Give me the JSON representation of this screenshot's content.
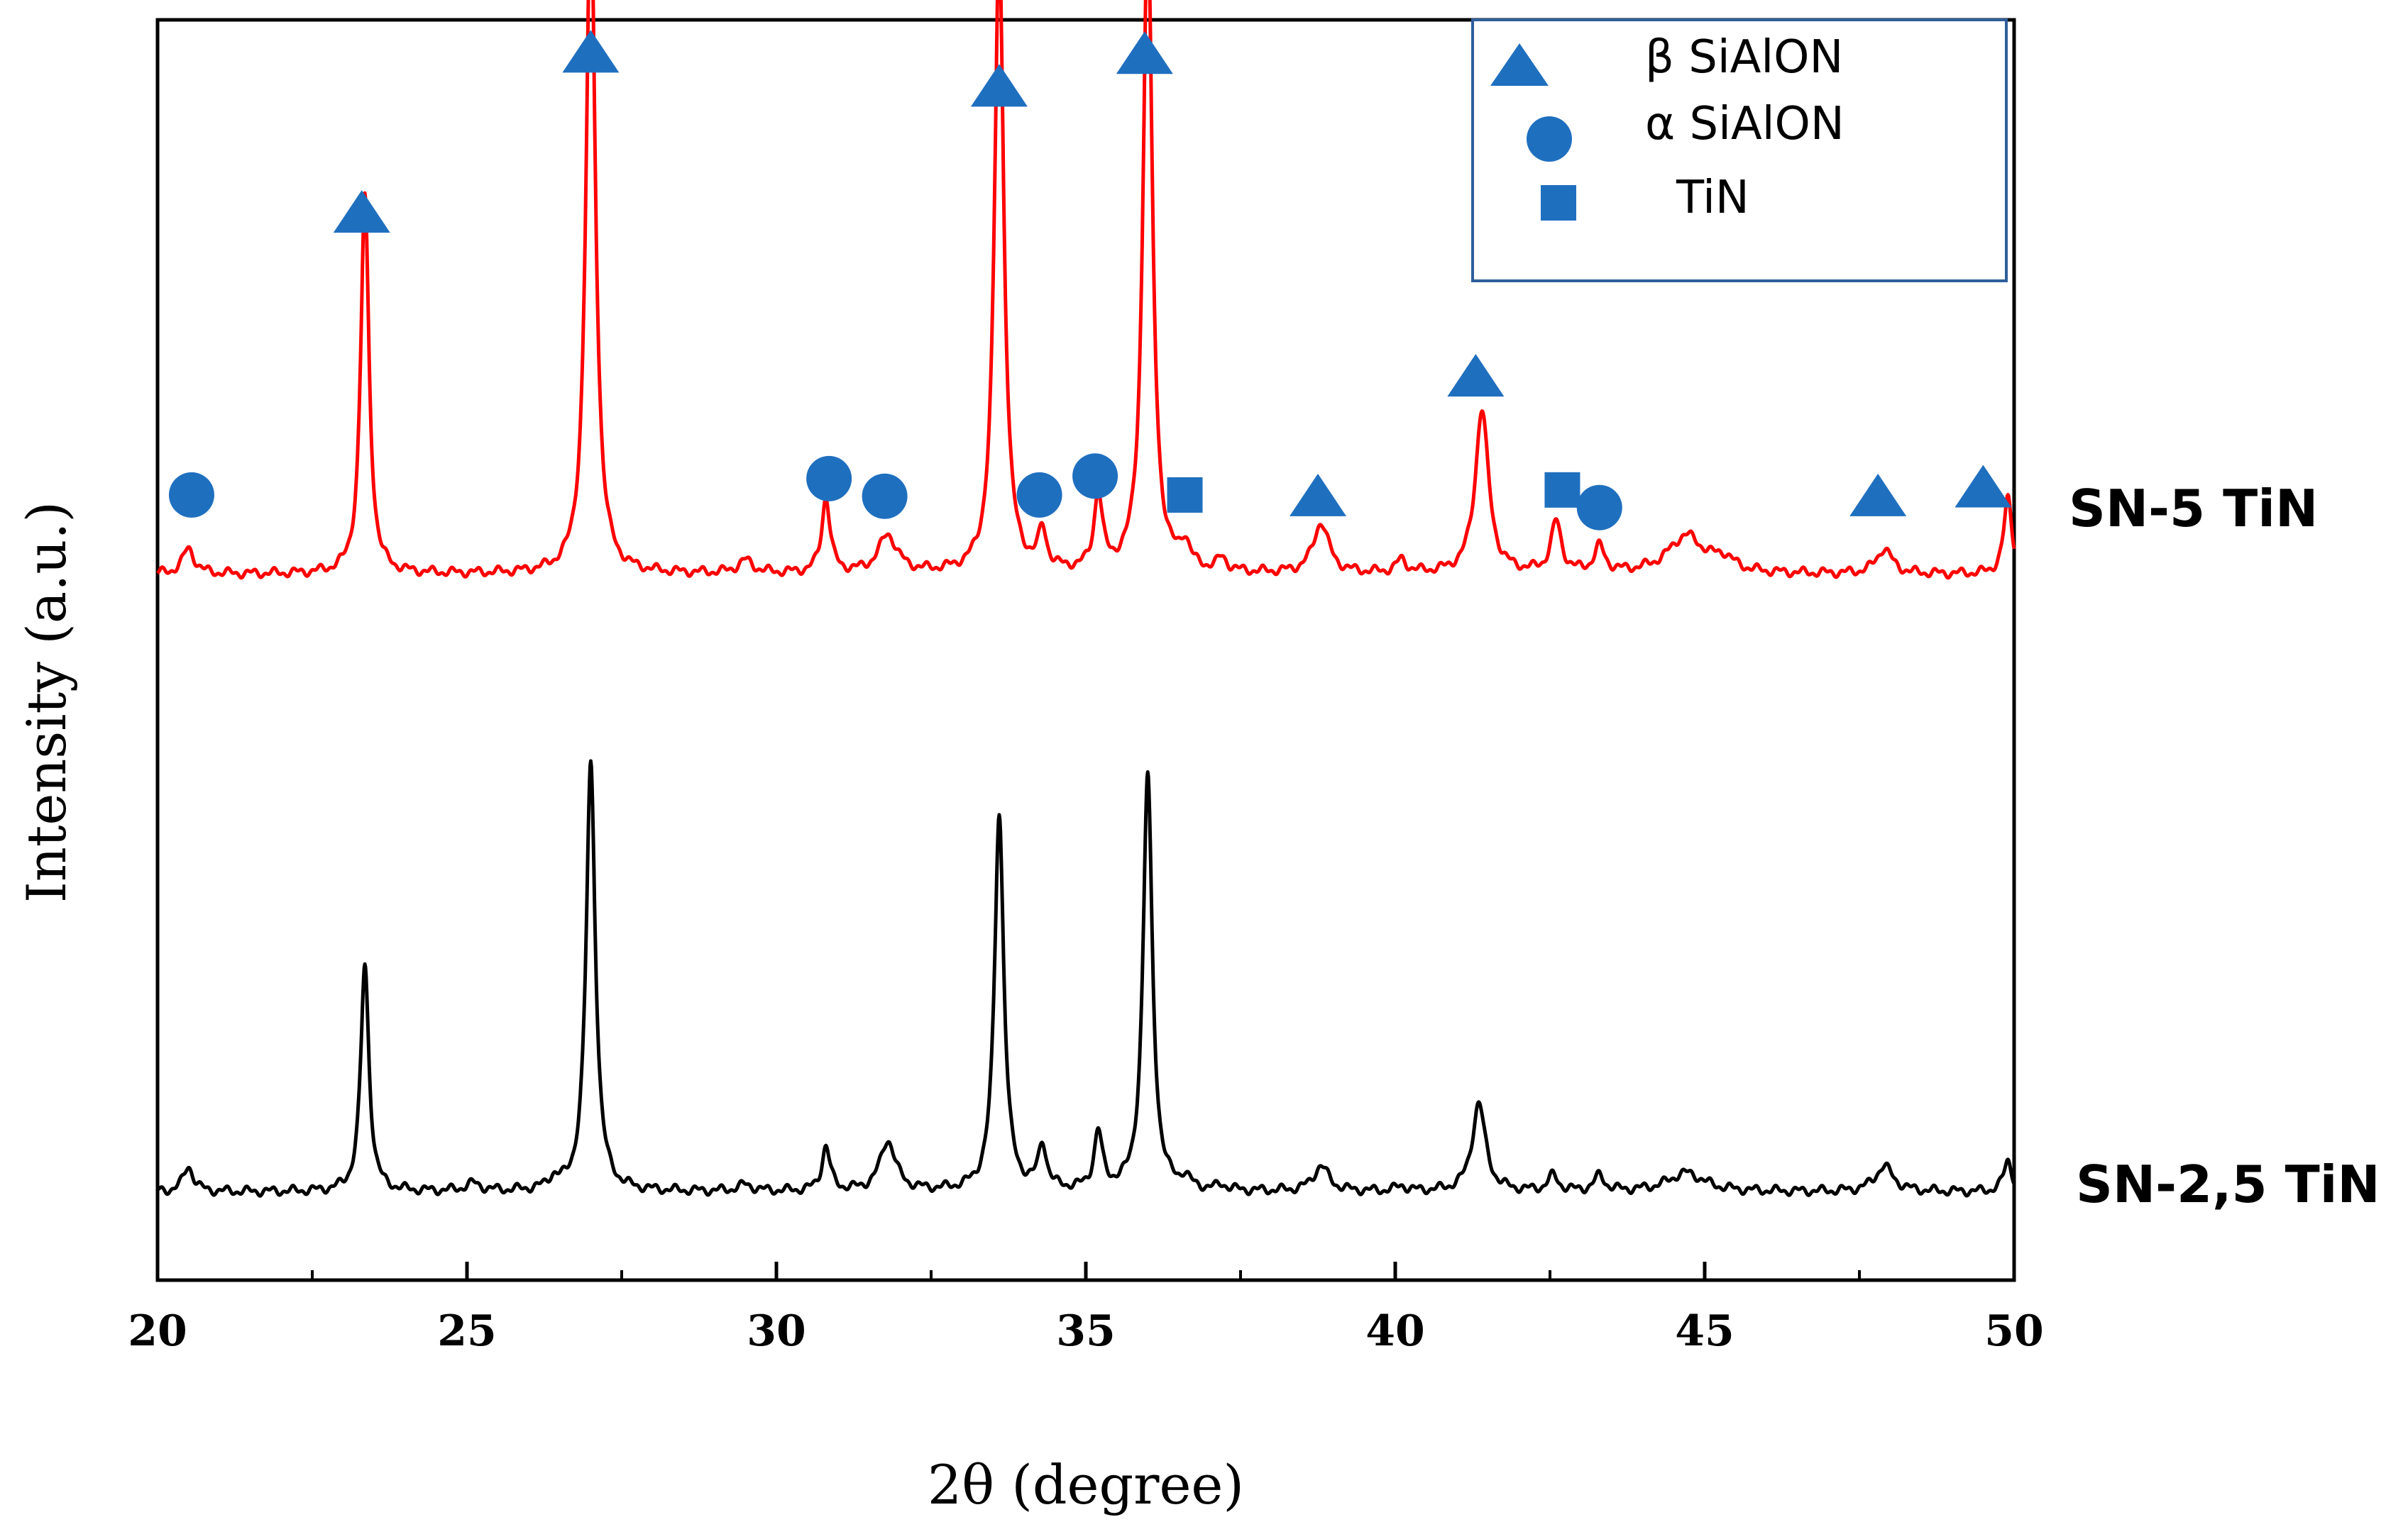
{
  "chart_data": {
    "type": "line",
    "title": "",
    "xlabel": "2θ (degree)",
    "ylabel": "Intensity (a.u.)",
    "xlim": [
      20,
      50
    ],
    "ylim": [
      0,
      100
    ],
    "x_ticks": [
      20,
      25,
      30,
      35,
      40,
      45,
      50
    ],
    "grid": false,
    "legend_position": "top-right",
    "legend": [
      {
        "label": "β SiAlON",
        "marker": "triangle",
        "color": "#1f6fbf"
      },
      {
        "label": "α SiAlON",
        "marker": "circle",
        "color": "#1f6fbf"
      },
      {
        "label": "TiN",
        "marker": "square",
        "color": "#1f6fbf"
      }
    ],
    "series": [
      {
        "name": "SN-5 TiN",
        "color": "#ff0000",
        "baseline": 56,
        "peaks": [
          [
            20.5,
            2,
            0.12
          ],
          [
            23.35,
            30,
            0.08
          ],
          [
            27.0,
            54,
            0.09
          ],
          [
            29.5,
            1,
            0.15
          ],
          [
            30.8,
            6,
            0.08
          ],
          [
            31.8,
            3,
            0.18
          ],
          [
            33.6,
            50,
            0.09
          ],
          [
            34.3,
            3,
            0.08
          ],
          [
            35.2,
            6,
            0.08
          ],
          [
            36.0,
            52,
            0.09
          ],
          [
            36.6,
            2,
            0.1
          ],
          [
            37.2,
            1,
            0.1
          ],
          [
            38.8,
            4,
            0.15
          ],
          [
            40.1,
            1,
            0.1
          ],
          [
            41.4,
            13,
            0.13
          ],
          [
            42.6,
            4,
            0.1
          ],
          [
            43.3,
            2,
            0.1
          ],
          [
            44.7,
            3,
            0.35
          ],
          [
            45.3,
            1,
            0.2
          ],
          [
            47.9,
            2,
            0.15
          ],
          [
            49.9,
            6,
            0.08
          ]
        ],
        "markers": [
          {
            "x": 20.55,
            "y": 62.3,
            "phase": "α SiAlON"
          },
          {
            "x": 23.3,
            "y": 84.8,
            "phase": "β SiAlON"
          },
          {
            "x": 27.0,
            "y": 97.5,
            "phase": "β SiAlON"
          },
          {
            "x": 30.85,
            "y": 63.6,
            "phase": "α SiAlON"
          },
          {
            "x": 31.75,
            "y": 62.2,
            "phase": "α SiAlON"
          },
          {
            "x": 33.6,
            "y": 94.8,
            "phase": "β SiAlON"
          },
          {
            "x": 34.25,
            "y": 62.3,
            "phase": "α SiAlON"
          },
          {
            "x": 35.15,
            "y": 63.8,
            "phase": "α SiAlON"
          },
          {
            "x": 35.95,
            "y": 97.4,
            "phase": "β SiAlON"
          },
          {
            "x": 36.6,
            "y": 62.3,
            "phase": "TiN"
          },
          {
            "x": 38.75,
            "y": 62.3,
            "phase": "β SiAlON"
          },
          {
            "x": 41.3,
            "y": 71.8,
            "phase": "β SiAlON"
          },
          {
            "x": 42.7,
            "y": 62.7,
            "phase": "TiN"
          },
          {
            "x": 43.3,
            "y": 61.3,
            "phase": "α SiAlON"
          },
          {
            "x": 47.8,
            "y": 62.3,
            "phase": "β SiAlON"
          },
          {
            "x": 49.5,
            "y": 63.0,
            "phase": "β SiAlON"
          }
        ]
      },
      {
        "name": "SN-2,5 TiN",
        "color": "#000000",
        "baseline": 7,
        "peaks": [
          [
            20.5,
            2,
            0.1
          ],
          [
            23.35,
            18,
            0.08
          ],
          [
            25.1,
            0.6,
            0.15
          ],
          [
            26.4,
            0.8,
            0.1
          ],
          [
            27.0,
            34,
            0.09
          ],
          [
            29.5,
            0.5,
            0.15
          ],
          [
            30.8,
            3.5,
            0.08
          ],
          [
            31.8,
            4,
            0.15
          ],
          [
            33.6,
            30,
            0.09
          ],
          [
            34.3,
            3.5,
            0.08
          ],
          [
            35.2,
            4.5,
            0.08
          ],
          [
            36.0,
            33,
            0.09
          ],
          [
            36.6,
            0.8,
            0.1
          ],
          [
            37.2,
            0.4,
            0.1
          ],
          [
            38.8,
            2,
            0.15
          ],
          [
            40.1,
            0.4,
            0.1
          ],
          [
            41.35,
            7,
            0.13
          ],
          [
            42.55,
            1.2,
            0.1
          ],
          [
            43.3,
            1.2,
            0.1
          ],
          [
            44.7,
            1.5,
            0.35
          ],
          [
            47.9,
            2,
            0.18
          ],
          [
            49.9,
            2.5,
            0.08
          ]
        ]
      }
    ]
  }
}
